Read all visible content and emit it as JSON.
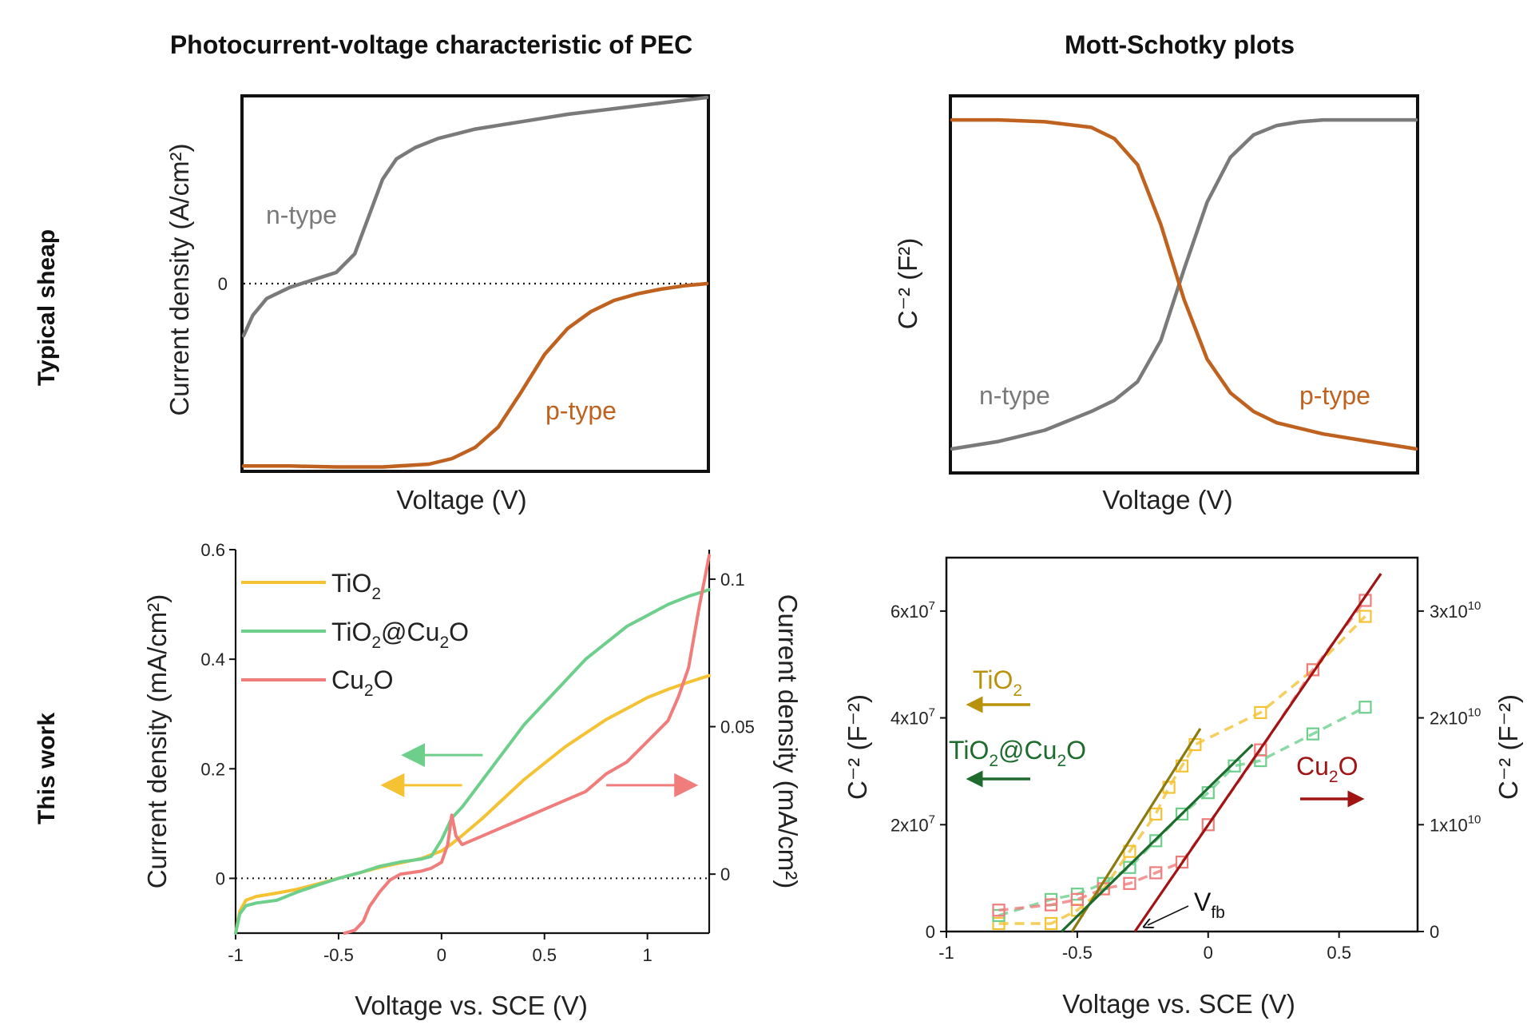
{
  "titles": {
    "left": "Photocurrent-voltage characteristic of PEC",
    "right": "Mott-Schotky plots"
  },
  "row_labels": {
    "top": "Typical sheap",
    "bottom": "This work"
  },
  "colors": {
    "gray": "#7a7a7a",
    "orange": "#c0621f",
    "yellow": "#f4c233",
    "green": "#6ecf8d",
    "pink": "#f07c7c",
    "olive": "#8a7a10",
    "darkgreen": "#1e6b2e",
    "darkred": "#a11414"
  },
  "chart_data": [
    {
      "id": "A",
      "type": "line",
      "title": "Photocurrent-voltage characteristic of PEC",
      "xlabel": "Voltage (V)",
      "ylabel": "Current  density (A/cm²)",
      "xlim": [
        0,
        1
      ],
      "ylim": [
        -1,
        1
      ],
      "yticks": [
        {
          "v": 0,
          "label": "0"
        }
      ],
      "zero_line": true,
      "series": [
        {
          "name": "n-type",
          "label": "n-type",
          "color": "#7a7a7a",
          "x": [
            0,
            0.02,
            0.05,
            0.1,
            0.15,
            0.2,
            0.24,
            0.27,
            0.3,
            0.33,
            0.37,
            0.42,
            0.5,
            0.6,
            0.7,
            0.8,
            0.9,
            1.0
          ],
          "y": [
            -0.28,
            -0.17,
            -0.08,
            -0.02,
            0.02,
            0.06,
            0.16,
            0.36,
            0.56,
            0.67,
            0.73,
            0.78,
            0.83,
            0.87,
            0.91,
            0.94,
            0.97,
            1.0
          ]
        },
        {
          "name": "p-type",
          "label": "p-type",
          "color": "#c0621f",
          "x": [
            0,
            0.1,
            0.2,
            0.3,
            0.4,
            0.45,
            0.5,
            0.55,
            0.6,
            0.65,
            0.7,
            0.75,
            0.8,
            0.85,
            0.9,
            0.95,
            1.0
          ],
          "y": [
            -0.98,
            -0.98,
            -0.985,
            -0.985,
            -0.97,
            -0.94,
            -0.88,
            -0.77,
            -0.58,
            -0.38,
            -0.24,
            -0.15,
            -0.09,
            -0.055,
            -0.03,
            -0.012,
            0.0
          ]
        }
      ]
    },
    {
      "id": "B",
      "type": "line",
      "title": "Mott-Schotky plots",
      "xlabel": "Voltage (V)",
      "ylabel": "C⁻² (F²)",
      "xlim": [
        0,
        1
      ],
      "ylim": [
        0,
        1
      ],
      "series": [
        {
          "name": "n-type",
          "label": "n-type",
          "color": "#7a7a7a",
          "x": [
            0,
            0.1,
            0.2,
            0.3,
            0.35,
            0.4,
            0.45,
            0.5,
            0.55,
            0.6,
            0.65,
            0.7,
            0.75,
            0.8,
            0.9,
            1.0
          ],
          "y": [
            0.06,
            0.08,
            0.11,
            0.16,
            0.19,
            0.24,
            0.35,
            0.54,
            0.72,
            0.84,
            0.9,
            0.925,
            0.935,
            0.94,
            0.94,
            0.94
          ]
        },
        {
          "name": "p-type",
          "label": "p-type",
          "color": "#c0621f",
          "x": [
            0,
            0.1,
            0.2,
            0.3,
            0.35,
            0.4,
            0.45,
            0.5,
            0.55,
            0.6,
            0.65,
            0.7,
            0.8,
            0.9,
            1.0
          ],
          "y": [
            0.94,
            0.94,
            0.935,
            0.92,
            0.89,
            0.82,
            0.66,
            0.46,
            0.3,
            0.21,
            0.16,
            0.13,
            0.1,
            0.08,
            0.06
          ]
        }
      ]
    },
    {
      "id": "C",
      "type": "line",
      "xlabel": "Voltage vs. SCE (V)",
      "ylabel": "Current density (mA/cm²)",
      "ylabel_right": "Current density (mA/cm²)",
      "xlim": [
        -1,
        1.3
      ],
      "ylim": [
        -0.1,
        0.6
      ],
      "xticks": [
        {
          "v": -1,
          "label": "-1"
        },
        {
          "v": -0.5,
          "label": "-0.5"
        },
        {
          "v": 0,
          "label": "0"
        },
        {
          "v": 0.5,
          "label": "0.5"
        },
        {
          "v": 1,
          "label": "1"
        }
      ],
      "yticks": [
        {
          "v": 0,
          "label": "0"
        },
        {
          "v": 0.2,
          "label": "0.2"
        },
        {
          "v": 0.4,
          "label": "0.4"
        },
        {
          "v": 0.6,
          "label": "0.6"
        }
      ],
      "y2lim": [
        -0.02,
        0.11
      ],
      "y2ticks": [
        {
          "v": 0,
          "label": "0"
        },
        {
          "v": 0.05,
          "label": "0.05"
        },
        {
          "v": 0.1,
          "label": "0.1"
        }
      ],
      "zero_line": true,
      "series": [
        {
          "name": "TiO2",
          "color": "#f4c233",
          "axis": "left",
          "x": [
            -1,
            -0.98,
            -0.95,
            -0.9,
            -0.8,
            -0.7,
            -0.6,
            -0.5,
            -0.4,
            -0.3,
            -0.2,
            -0.1,
            0.0,
            0.05,
            0.1,
            0.2,
            0.3,
            0.4,
            0.5,
            0.6,
            0.7,
            0.8,
            0.9,
            1.0,
            1.1,
            1.2,
            1.3
          ],
          "y": [
            -0.1,
            -0.06,
            -0.04,
            -0.033,
            -0.027,
            -0.02,
            -0.01,
            0.0,
            0.01,
            0.02,
            0.028,
            0.036,
            0.05,
            0.063,
            0.078,
            0.11,
            0.145,
            0.18,
            0.21,
            0.24,
            0.265,
            0.29,
            0.31,
            0.33,
            0.345,
            0.358,
            0.37
          ]
        },
        {
          "name": "TiO2@Cu2O",
          "color": "#6ecf8d",
          "axis": "left",
          "x": [
            -1,
            -0.98,
            -0.95,
            -0.9,
            -0.8,
            -0.7,
            -0.6,
            -0.5,
            -0.4,
            -0.3,
            -0.2,
            -0.1,
            -0.05,
            0.0,
            0.05,
            0.1,
            0.2,
            0.3,
            0.4,
            0.5,
            0.6,
            0.7,
            0.8,
            0.9,
            1.0,
            1.1,
            1.2,
            1.3
          ],
          "y": [
            -0.1,
            -0.065,
            -0.05,
            -0.045,
            -0.04,
            -0.025,
            -0.012,
            0.0,
            0.01,
            0.022,
            0.03,
            0.035,
            0.04,
            0.07,
            0.11,
            0.13,
            0.18,
            0.23,
            0.28,
            0.32,
            0.36,
            0.4,
            0.43,
            0.46,
            0.48,
            0.5,
            0.515,
            0.527
          ]
        },
        {
          "name": "Cu2O",
          "color": "#f07c7c",
          "axis": "right",
          "x": [
            -0.47,
            -0.42,
            -0.38,
            -0.35,
            -0.3,
            -0.25,
            -0.2,
            -0.1,
            -0.05,
            0.0,
            0.03,
            0.05,
            0.07,
            0.1,
            0.2,
            0.3,
            0.4,
            0.5,
            0.6,
            0.7,
            0.8,
            0.9,
            1.0,
            1.1,
            1.15,
            1.2,
            1.25,
            1.3
          ],
          "y": [
            -0.02,
            -0.019,
            -0.016,
            -0.011,
            -0.006,
            -0.002,
            0.0,
            0.001,
            0.002,
            0.004,
            0.01,
            0.02,
            0.013,
            0.01,
            0.013,
            0.016,
            0.019,
            0.022,
            0.025,
            0.028,
            0.034,
            0.038,
            0.045,
            0.052,
            0.06,
            0.07,
            0.09,
            0.108
          ]
        }
      ],
      "legend": [
        {
          "key": "TiO2",
          "text": "TiO",
          "sub": "2",
          "color": "#f4c233"
        },
        {
          "key": "TiO2@Cu2O",
          "text": "TiO",
          "sub": "2",
          "text2": "@Cu",
          "sub2": "2",
          "text3": "O",
          "color": "#6ecf8d"
        },
        {
          "key": "Cu2O",
          "text": "Cu",
          "sub": "2",
          "text2": "O",
          "color": "#f07c7c"
        }
      ],
      "arrows": [
        {
          "color": "#6ecf8d",
          "direction": "left",
          "x": [
            -0.15,
            0.2
          ],
          "y": 0.225
        },
        {
          "color": "#f4c233",
          "direction": "left",
          "x": [
            -0.25,
            0.1
          ],
          "y": 0.17
        },
        {
          "color": "#f07c7c",
          "direction": "right",
          "x": [
            0.8,
            1.2
          ],
          "y": 0.17
        }
      ]
    },
    {
      "id": "D",
      "type": "scatter",
      "xlabel": "Voltage vs. SCE (V)",
      "ylabel": "C⁻² (F⁻²)",
      "ylabel_right": "C⁻² (F⁻²)",
      "xlim": [
        -1,
        0.8
      ],
      "ylim": [
        0,
        70000000
      ],
      "xticks": [
        {
          "v": -1,
          "label": "-1"
        },
        {
          "v": -0.5,
          "label": "-0.5"
        },
        {
          "v": 0,
          "label": "0"
        },
        {
          "v": 0.5,
          "label": "0.5"
        }
      ],
      "yticks": [
        {
          "v": 0,
          "label": "0"
        },
        {
          "v": 20000000,
          "label": "2x10",
          "exp": "7"
        },
        {
          "v": 40000000,
          "label": "4x10",
          "exp": "7"
        },
        {
          "v": 60000000,
          "label": "6x10",
          "exp": "7"
        }
      ],
      "y2lim": [
        0,
        35000000000
      ],
      "y2ticks": [
        {
          "v": 0,
          "label": "0"
        },
        {
          "v": 10000000000,
          "label": "1x10",
          "exp": "10"
        },
        {
          "v": 20000000000,
          "label": "2x10",
          "exp": "10"
        },
        {
          "v": 30000000000,
          "label": "3x10",
          "exp": "10"
        }
      ],
      "series": [
        {
          "name": "TiO2",
          "color": "#f4c233",
          "axis": "left",
          "x": [
            -0.8,
            -0.6,
            -0.5,
            -0.4,
            -0.3,
            -0.2,
            -0.15,
            -0.1,
            -0.05,
            0.2,
            0.4,
            0.6
          ],
          "y": [
            1500000,
            1500000,
            4000000,
            8000000,
            15000000,
            22000000,
            27000000,
            31000000,
            35000000,
            41000000,
            49000000,
            59000000
          ]
        },
        {
          "name": "TiO2@Cu2O",
          "color": "#6ecf8d",
          "axis": "left",
          "x": [
            -0.8,
            -0.6,
            -0.5,
            -0.4,
            -0.3,
            -0.2,
            -0.1,
            0.0,
            0.1,
            0.2,
            0.4,
            0.6
          ],
          "y": [
            3000000,
            6000000,
            7000000,
            9000000,
            12000000,
            17000000,
            22000000,
            26000000,
            31000000,
            32000000,
            37000000,
            42000000
          ]
        },
        {
          "name": "Cu2O",
          "color": "#f07c7c",
          "axis": "right",
          "x": [
            -0.8,
            -0.6,
            -0.5,
            -0.4,
            -0.3,
            -0.2,
            -0.1,
            0.0,
            0.2,
            0.4,
            0.6
          ],
          "y": [
            2000000000,
            2500000000,
            3000000000,
            4000000000,
            4500000000,
            5500000000,
            6500000000,
            10000000000,
            17000000000,
            24500000000,
            31000000000
          ]
        }
      ],
      "fits": [
        {
          "name": "TiO2 fit",
          "color": "#8a7a10",
          "x": [
            -0.52,
            -0.03
          ],
          "y": [
            0,
            38000000
          ]
        },
        {
          "name": "TiO2@Cu2O fit",
          "color": "#1e6b2e",
          "x": [
            -0.56,
            0.17
          ],
          "y": [
            0,
            35000000
          ]
        },
        {
          "name": "Cu2O fit",
          "color": "#a11414",
          "x": [
            -0.28,
            0.66
          ],
          "y": [
            0,
            67000000
          ]
        }
      ],
      "vfb_label": "V",
      "vfb_sub": "fb",
      "labels": [
        {
          "text": "TiO",
          "sub": "2",
          "color": "#b8920a"
        },
        {
          "text": "TiO",
          "sub": "2",
          "text2": "@Cu",
          "sub2": "2",
          "text3": "O",
          "color": "#1e6b2e"
        },
        {
          "text": "Cu",
          "sub": "2",
          "text2": "O",
          "color": "#a11414"
        }
      ]
    }
  ]
}
